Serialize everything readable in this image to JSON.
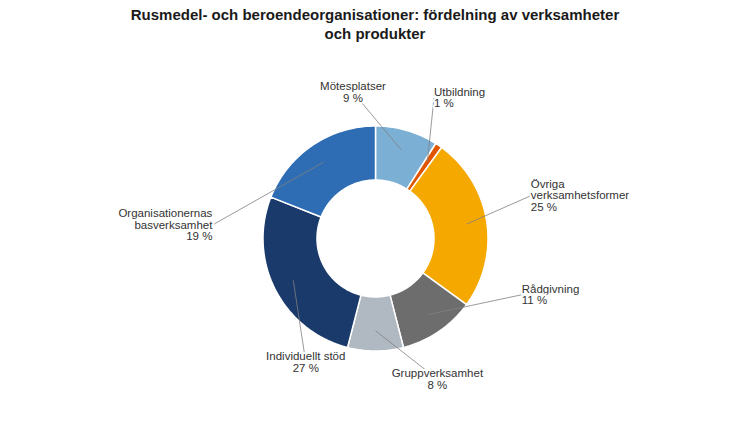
{
  "chart_data": {
    "type": "pie",
    "title": "Rusmedel- och beroendeorganisationer: fördelning av verksamheter\noch produkter",
    "categories": [
      "Mötesplatser\n9 %",
      "Utbildning\n1 %",
      "Övriga\nverksamhetsformer\n25 %",
      "Rådgivning\n11 %",
      "Gruppverksamhet\n8 %",
      "Individuellt stöd\n27 %",
      "Organisationernas\nbasverksamhet\n19 %"
    ],
    "values": [
      9,
      1,
      25,
      11,
      8,
      27,
      19
    ],
    "colors": [
      "#7bafd4",
      "#e05500",
      "#f5a800",
      "#6d6d6d",
      "#b0b8c1",
      "#1a3a6b",
      "#2e6db4"
    ]
  }
}
